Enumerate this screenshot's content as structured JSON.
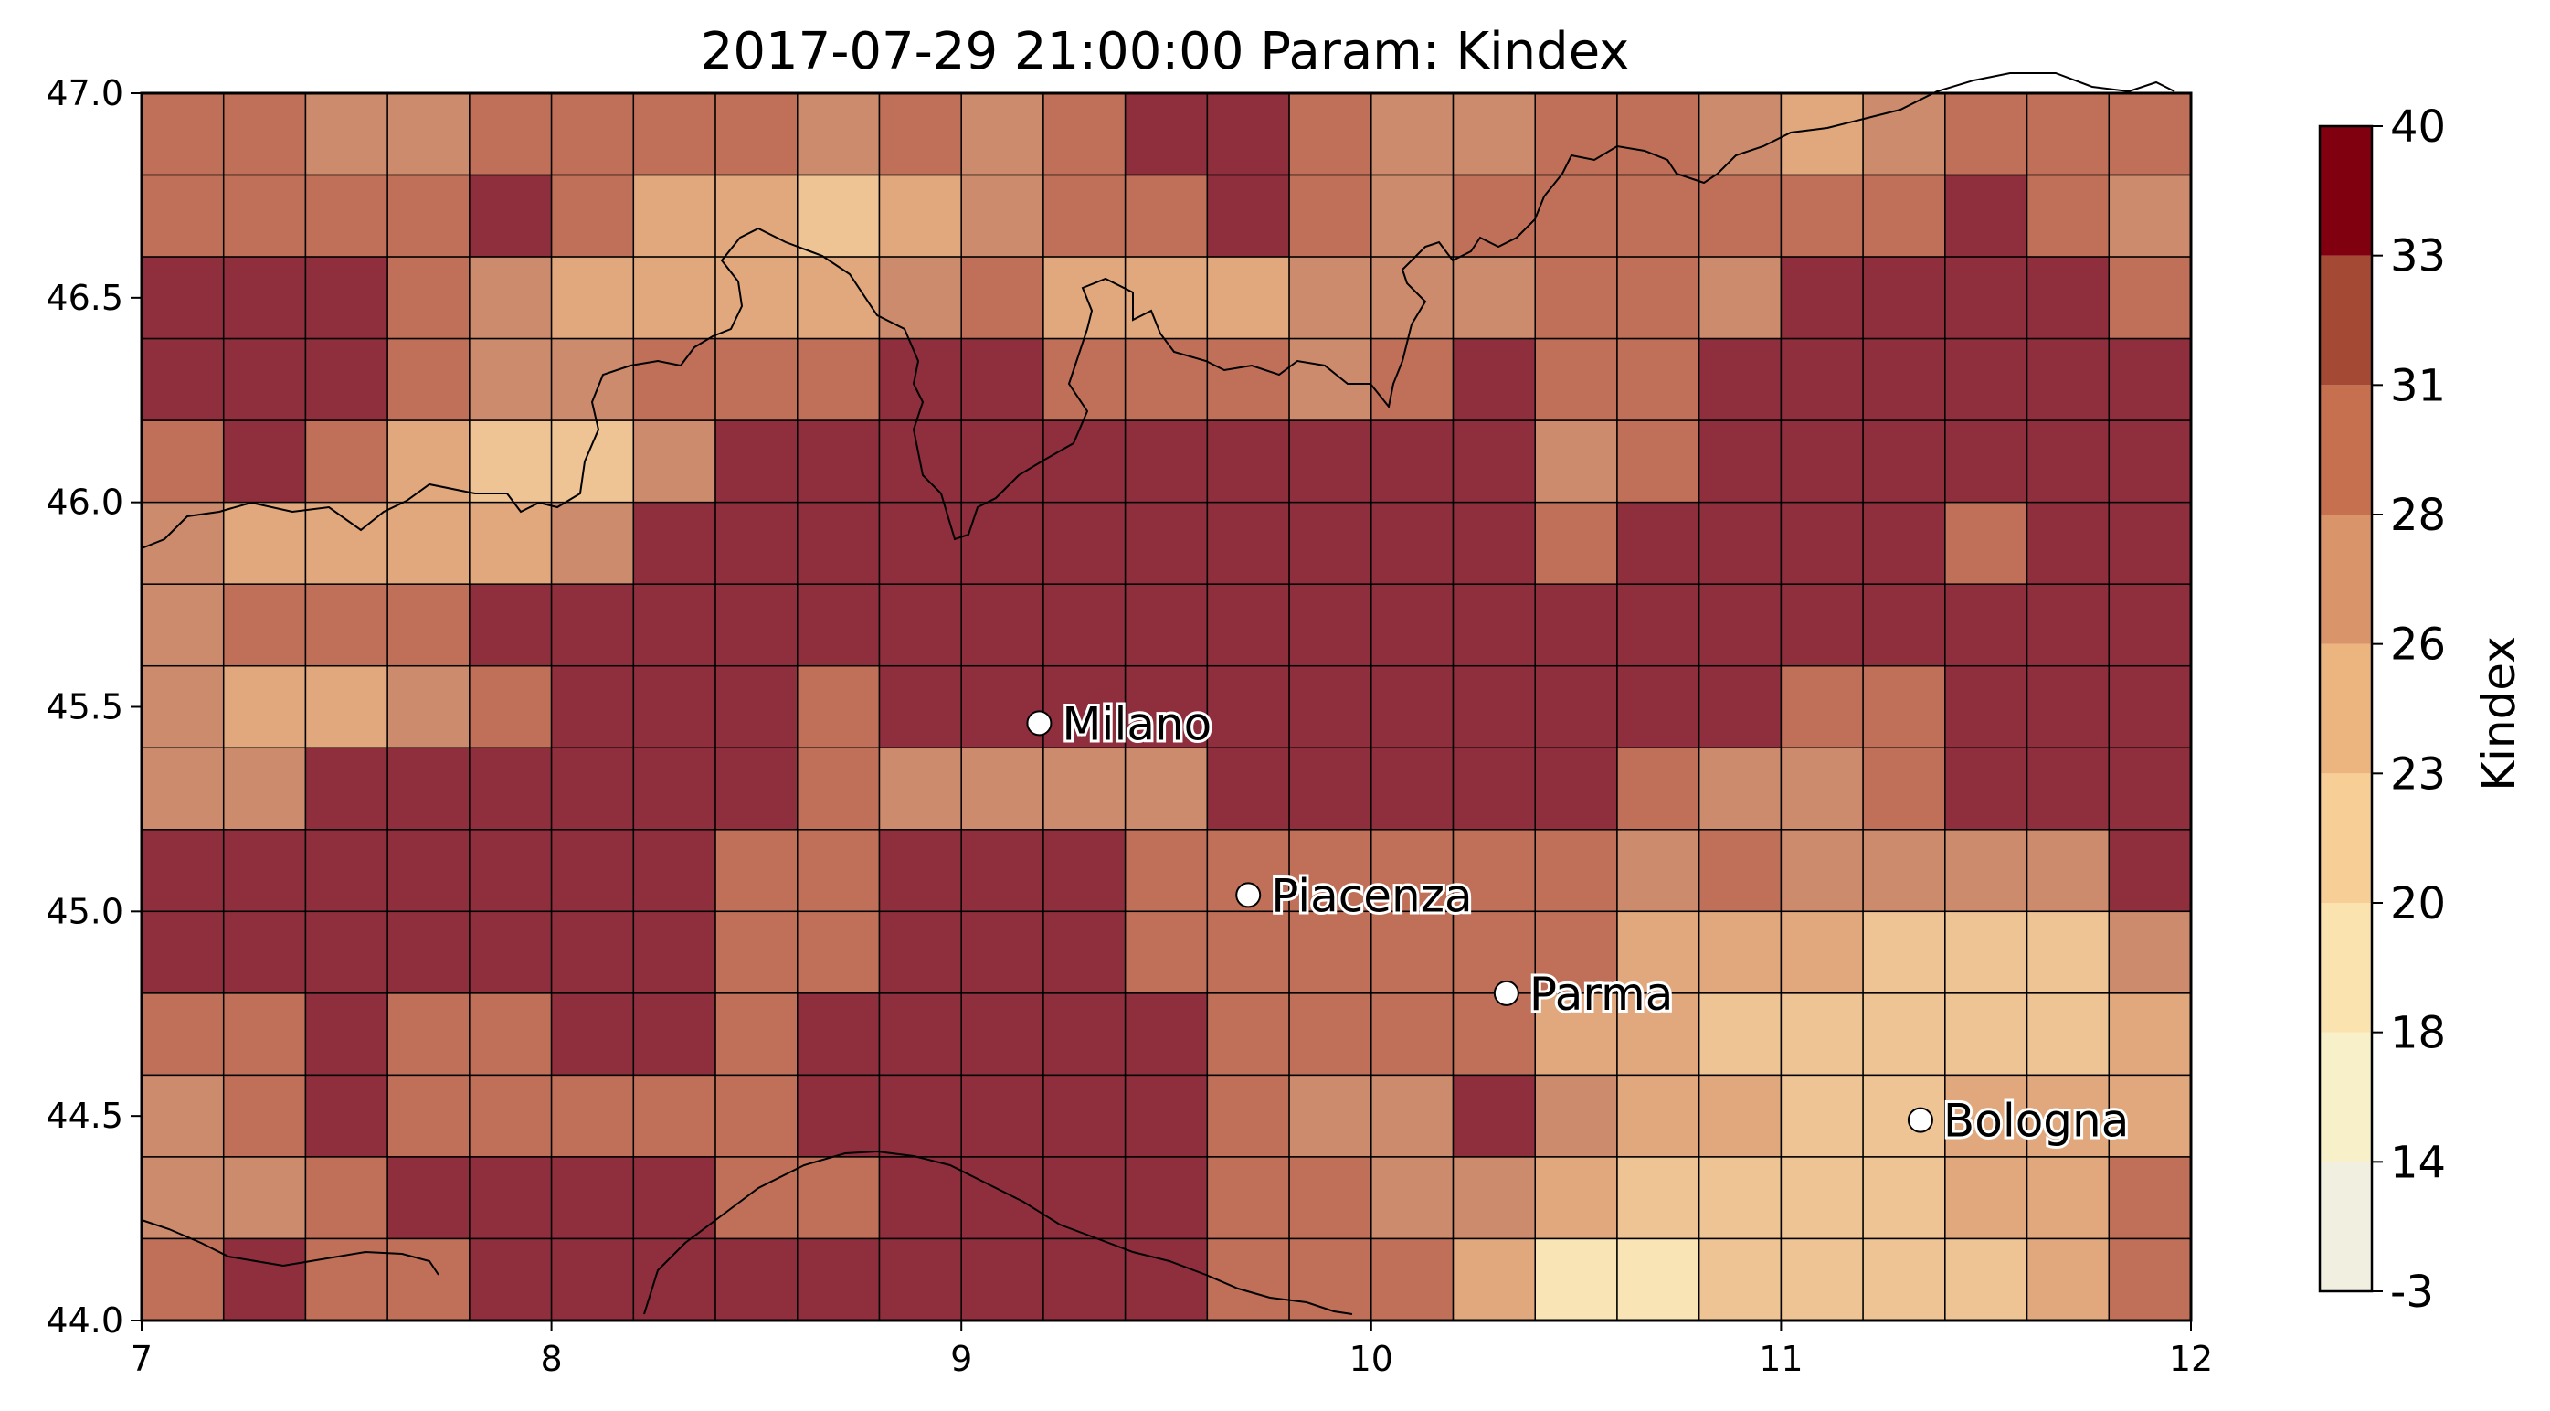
{
  "chart_data": {
    "type": "heatmap",
    "title": "2017-07-29 21:00:00 Param: Kindex",
    "xlabel": "",
    "ylabel": "",
    "colorbar_label": "Kindex",
    "xlim": [
      7,
      12
    ],
    "ylim": [
      44.0,
      47.0
    ],
    "x_ticks": [
      7,
      8,
      9,
      10,
      11,
      12
    ],
    "x_tick_labels": [
      "7",
      "8",
      "9",
      "10",
      "11",
      "12"
    ],
    "y_ticks": [
      44.0,
      44.5,
      45.0,
      45.5,
      46.0,
      46.5,
      47.0
    ],
    "y_tick_labels": [
      "44.0",
      "44.5",
      "45.0",
      "45.5",
      "46.0",
      "46.5",
      "47.0"
    ],
    "grid_x_edges": [
      7.0,
      7.2,
      7.4,
      7.6,
      7.8,
      8.0,
      8.2,
      8.4,
      8.6,
      8.8,
      9.0,
      9.2,
      9.4,
      9.6,
      9.8,
      10.0,
      10.2,
      10.4,
      10.6,
      10.8,
      11.0,
      11.2,
      11.4,
      11.6,
      11.8,
      12.0
    ],
    "grid_y_edges": [
      47.0,
      46.8,
      46.6,
      46.4,
      46.2,
      46.0,
      45.8,
      45.6,
      45.4,
      45.2,
      45.0,
      44.8,
      44.6,
      44.4,
      44.2,
      44.0
    ],
    "colorbar_levels": [
      -3,
      14,
      18,
      20,
      23,
      26,
      28,
      31,
      33,
      40
    ],
    "colorbar_tick_labels": [
      "-3",
      "14",
      "18",
      "20",
      "23",
      "26",
      "28",
      "31",
      "33",
      "40"
    ],
    "colorbar_colors": [
      "#f0efe0",
      "#f8f0c8",
      "#fae3ae",
      "#f6ce96",
      "#ecb47e",
      "#da946a",
      "#c7704f",
      "#a44a34",
      "#800010"
    ],
    "cell_colors": {
      "7": "#c07058",
      "5": "#cc8b6c",
      "4": "#e0a87c",
      "3": "#eec494",
      "2": "#f8e4b4",
      "9": "#8f2e3d"
    },
    "rows": [
      [
        "7",
        "7",
        "5",
        "5",
        "7",
        "7",
        "7",
        "7",
        "5",
        "7",
        "5",
        "7",
        "9",
        "9",
        "7",
        "5",
        "5",
        "7",
        "7",
        "5",
        "4",
        "5",
        "7",
        "7",
        "7"
      ],
      [
        "7",
        "7",
        "7",
        "7",
        "9",
        "7",
        "4",
        "4",
        "3",
        "4",
        "5",
        "7",
        "7",
        "9",
        "7",
        "5",
        "7",
        "7",
        "7",
        "7",
        "7",
        "7",
        "9",
        "7",
        "5"
      ],
      [
        "9",
        "9",
        "9",
        "7",
        "5",
        "4",
        "4",
        "4",
        "4",
        "5",
        "7",
        "4",
        "4",
        "4",
        "5",
        "5",
        "5",
        "7",
        "7",
        "5",
        "9",
        "9",
        "9",
        "9",
        "7"
      ],
      [
        "9",
        "9",
        "9",
        "7",
        "5",
        "5",
        "7",
        "7",
        "7",
        "9",
        "9",
        "7",
        "7",
        "7",
        "5",
        "7",
        "9",
        "7",
        "7",
        "9",
        "9",
        "9",
        "9",
        "9",
        "9"
      ],
      [
        "7",
        "9",
        "7",
        "4",
        "3",
        "3",
        "5",
        "9",
        "9",
        "9",
        "9",
        "9",
        "9",
        "9",
        "9",
        "9",
        "9",
        "5",
        "7",
        "9",
        "9",
        "9",
        "9",
        "9",
        "9"
      ],
      [
        "5",
        "4",
        "4",
        "4",
        "4",
        "5",
        "9",
        "9",
        "9",
        "9",
        "9",
        "9",
        "9",
        "9",
        "9",
        "9",
        "9",
        "7",
        "9",
        "9",
        "9",
        "9",
        "7",
        "9",
        "9"
      ],
      [
        "5",
        "7",
        "7",
        "7",
        "9",
        "9",
        "9",
        "9",
        "9",
        "9",
        "9",
        "9",
        "9",
        "9",
        "9",
        "9",
        "9",
        "9",
        "9",
        "9",
        "9",
        "9",
        "9",
        "9",
        "9"
      ],
      [
        "5",
        "4",
        "4",
        "5",
        "7",
        "9",
        "9",
        "9",
        "7",
        "9",
        "9",
        "9",
        "9",
        "9",
        "9",
        "9",
        "9",
        "9",
        "9",
        "9",
        "7",
        "7",
        "9",
        "9",
        "9"
      ],
      [
        "5",
        "5",
        "9",
        "9",
        "9",
        "9",
        "9",
        "9",
        "7",
        "5",
        "5",
        "5",
        "5",
        "9",
        "9",
        "9",
        "9",
        "9",
        "7",
        "5",
        "5",
        "7",
        "9",
        "9",
        "9"
      ],
      [
        "9",
        "9",
        "9",
        "9",
        "9",
        "9",
        "9",
        "7",
        "7",
        "9",
        "9",
        "9",
        "7",
        "7",
        "7",
        "7",
        "7",
        "7",
        "5",
        "7",
        "5",
        "5",
        "5",
        "5",
        "9"
      ],
      [
        "9",
        "9",
        "9",
        "9",
        "9",
        "9",
        "9",
        "7",
        "7",
        "9",
        "9",
        "9",
        "7",
        "7",
        "7",
        "7",
        "7",
        "7",
        "4",
        "4",
        "4",
        "3",
        "3",
        "3",
        "5"
      ],
      [
        "7",
        "7",
        "9",
        "7",
        "7",
        "9",
        "9",
        "7",
        "9",
        "9",
        "9",
        "9",
        "9",
        "7",
        "7",
        "7",
        "7",
        "4",
        "4",
        "3",
        "3",
        "3",
        "3",
        "3",
        "4"
      ],
      [
        "5",
        "7",
        "9",
        "7",
        "7",
        "7",
        "7",
        "7",
        "9",
        "9",
        "9",
        "9",
        "9",
        "7",
        "5",
        "5",
        "9",
        "5",
        "4",
        "4",
        "3",
        "3",
        "4",
        "4",
        "4"
      ],
      [
        "5",
        "5",
        "7",
        "9",
        "9",
        "9",
        "9",
        "7",
        "7",
        "9",
        "9",
        "9",
        "9",
        "7",
        "7",
        "5",
        "5",
        "4",
        "3",
        "3",
        "3",
        "3",
        "4",
        "4",
        "7"
      ],
      [
        "7",
        "9",
        "7",
        "7",
        "9",
        "9",
        "9",
        "9",
        "9",
        "9",
        "9",
        "9",
        "9",
        "7",
        "7",
        "7",
        "4",
        "2",
        "2",
        "3",
        "3",
        "3",
        "3",
        "4",
        "7"
      ]
    ],
    "annotations": [
      {
        "text": "Milano",
        "lon": 9.19,
        "lat": 45.46
      },
      {
        "text": "Piacenza",
        "lon": 9.7,
        "lat": 45.04
      },
      {
        "text": "Parma",
        "lon": 10.33,
        "lat": 44.8
      },
      {
        "text": "Bologna",
        "lon": 11.34,
        "lat": 44.49
      }
    ]
  }
}
